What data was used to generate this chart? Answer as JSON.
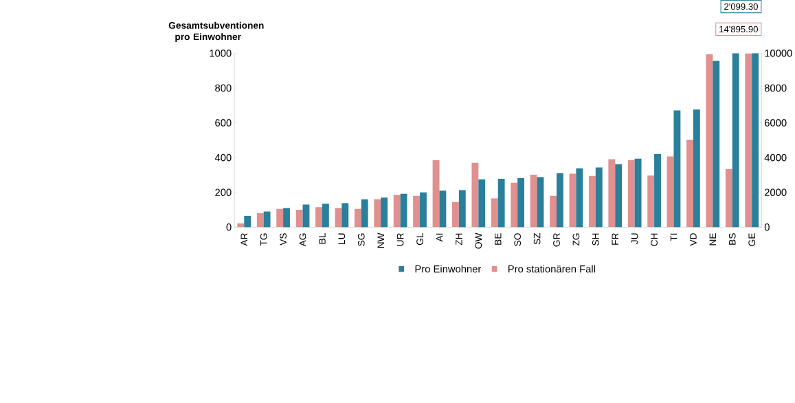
{
  "chart_data": {
    "type": "bar",
    "ylabel": "Gesamtsubventionen pro Einwohner",
    "categories": [
      "AR",
      "TG",
      "VS",
      "AG",
      "BL",
      "LU",
      "SG",
      "NW",
      "UR",
      "GL",
      "AI",
      "ZH",
      "OW",
      "BE",
      "SO",
      "SZ",
      "GR",
      "ZG",
      "SH",
      "FR",
      "JU",
      "CH",
      "TI",
      "VD",
      "NE",
      "BS",
      "GE"
    ],
    "series": [
      {
        "name": "Pro Einwohner",
        "color": "#2a7f9b",
        "values": [
          65,
          90,
          110,
          130,
          135,
          138,
          160,
          170,
          192,
          200,
          210,
          213,
          275,
          278,
          282,
          288,
          310,
          338,
          343,
          362,
          394,
          420,
          672,
          676,
          956,
          1000,
          1000
        ]
      },
      {
        "name": "Pro stationären Fall",
        "color": "#e0908f",
        "axis": "y2",
        "values": [
          220,
          800,
          1050,
          1000,
          1150,
          1100,
          1050,
          1600,
          1850,
          1800,
          3850,
          1450,
          3700,
          1650,
          2550,
          3020,
          1800,
          3080,
          2950,
          3910,
          3860,
          2970,
          4070,
          5020,
          9950,
          3340,
          10000
        ]
      }
    ],
    "ylim": [
      0,
      1000
    ],
    "yticks": [
      0,
      200,
      400,
      600,
      800,
      1000
    ],
    "y2lim": [
      0,
      10000
    ],
    "y2ticks": [
      0,
      2000,
      4000,
      6000,
      8000,
      10000
    ],
    "annotations": [
      "2'099.30",
      "14'895.90"
    ],
    "legend": "bottom"
  }
}
